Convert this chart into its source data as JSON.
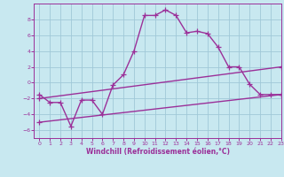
{
  "line1_x": [
    0,
    1,
    2,
    3,
    4,
    5,
    6,
    7,
    8,
    9,
    10,
    11,
    12,
    13,
    14,
    15,
    16,
    17,
    18,
    19,
    20,
    21,
    22,
    23
  ],
  "line1_y": [
    -1.5,
    -2.5,
    -2.5,
    -5.5,
    -2.2,
    -2.2,
    -4.0,
    -0.3,
    1.0,
    4.0,
    8.5,
    8.5,
    9.2,
    8.5,
    6.3,
    6.5,
    6.2,
    4.5,
    2.0,
    2.0,
    -0.2,
    -1.5,
    -1.5,
    -1.5
  ],
  "line2_x": [
    0,
    23
  ],
  "line2_y": [
    -2.0,
    2.0
  ],
  "line3_x": [
    0,
    23
  ],
  "line3_y": [
    -5.0,
    -1.5
  ],
  "line_color": "#9b3099",
  "bg_color": "#c8e8f0",
  "grid_color": "#a0c8d8",
  "xlabel": "Windchill (Refroidissement éolien,°C)",
  "ylim": [
    -7,
    10
  ],
  "xlim": [
    -0.5,
    23
  ],
  "yticks": [
    -6,
    -4,
    -2,
    0,
    2,
    4,
    6,
    8
  ],
  "xticks": [
    0,
    1,
    2,
    3,
    4,
    5,
    6,
    7,
    8,
    9,
    10,
    11,
    12,
    13,
    14,
    15,
    16,
    17,
    18,
    19,
    20,
    21,
    22,
    23
  ],
  "marker": "+",
  "markersize": 4,
  "linewidth": 1.0
}
